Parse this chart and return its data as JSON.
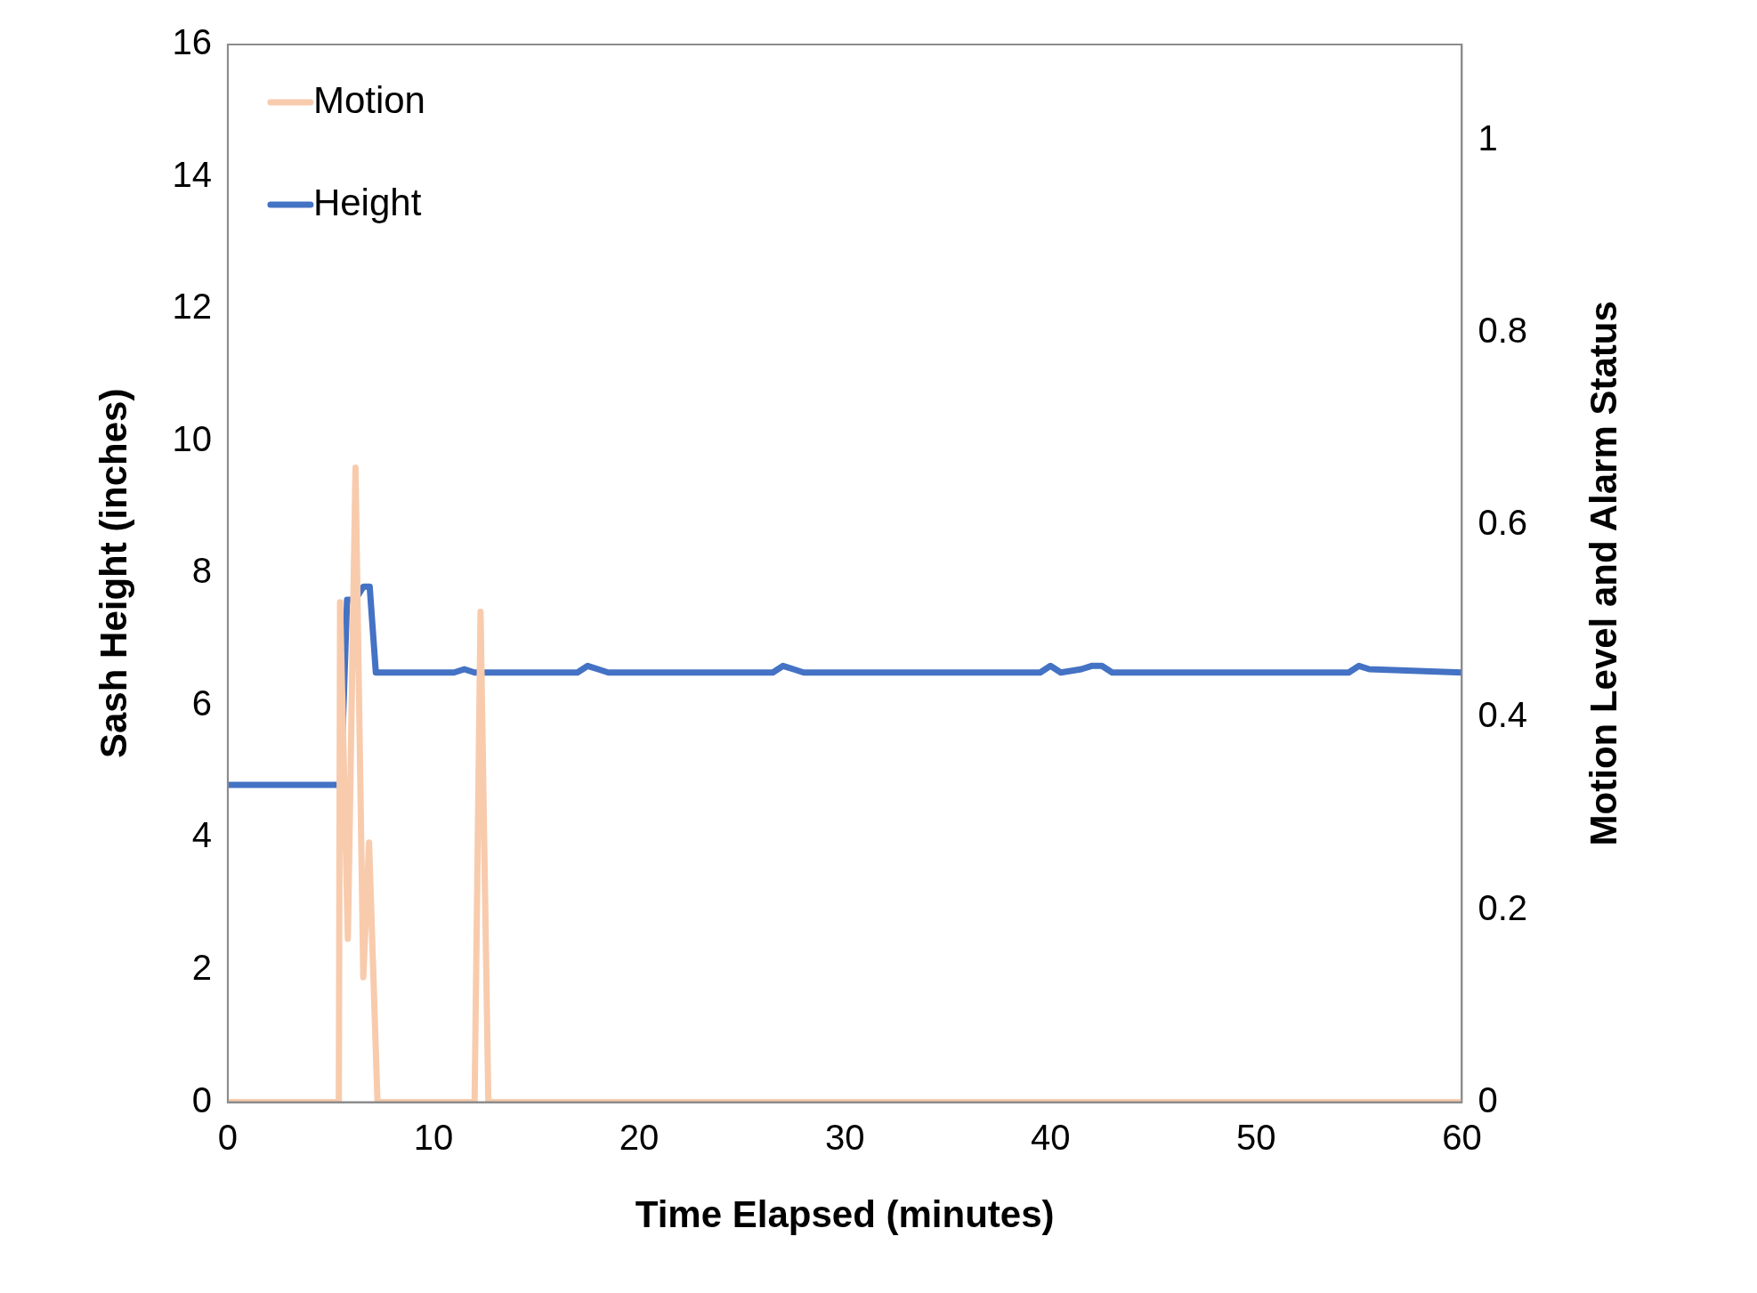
{
  "chart_data": {
    "type": "line",
    "xlabel": "Time Elapsed (minutes)",
    "ylabel": "Sash Height (inches)",
    "y2label": "Motion Level and Alarm Status",
    "xlim": [
      0,
      60
    ],
    "xticks": [
      0,
      10,
      20,
      30,
      40,
      50,
      60
    ],
    "ylim": [
      0,
      16
    ],
    "yticks": [
      0,
      2,
      4,
      6,
      8,
      10,
      12,
      14,
      16
    ],
    "y2lim": [
      0,
      1.1
    ],
    "y2ticks": [
      0,
      0.2,
      0.4,
      0.6,
      0.8,
      1
    ],
    "grid": false,
    "legend": "top left",
    "marker": "none",
    "line_style": "solid",
    "series": [
      {
        "name": "Motion",
        "color": "#f8cbad",
        "axis": "y2",
        "x": [
          0,
          5.4,
          5.46,
          5.84,
          6.21,
          6.59,
          6.87,
          7.28,
          12.0,
          12.29,
          12.67,
          60
        ],
        "values": [
          0,
          0,
          0.52,
          0.17,
          0.66,
          0.13,
          0.27,
          0,
          0,
          0.51,
          0,
          0
        ]
      },
      {
        "name": "Height",
        "color": "#4472c4",
        "x": [
          0,
          5.5,
          5.8,
          6.2,
          6.6,
          6.9,
          7.2,
          7.5,
          11,
          11.5,
          12,
          17,
          17.5,
          18,
          18.5,
          26.5,
          27,
          27.5,
          28,
          39.5,
          40,
          40.5,
          41.5,
          42,
          42.5,
          43,
          54.5,
          55,
          55.5,
          60
        ],
        "values": [
          4.8,
          4.8,
          7.6,
          7.6,
          7.8,
          7.8,
          6.5,
          6.5,
          6.5,
          6.55,
          6.5,
          6.5,
          6.6,
          6.55,
          6.5,
          6.5,
          6.6,
          6.55,
          6.5,
          6.5,
          6.6,
          6.5,
          6.55,
          6.6,
          6.6,
          6.5,
          6.5,
          6.6,
          6.55,
          6.5
        ]
      }
    ]
  }
}
